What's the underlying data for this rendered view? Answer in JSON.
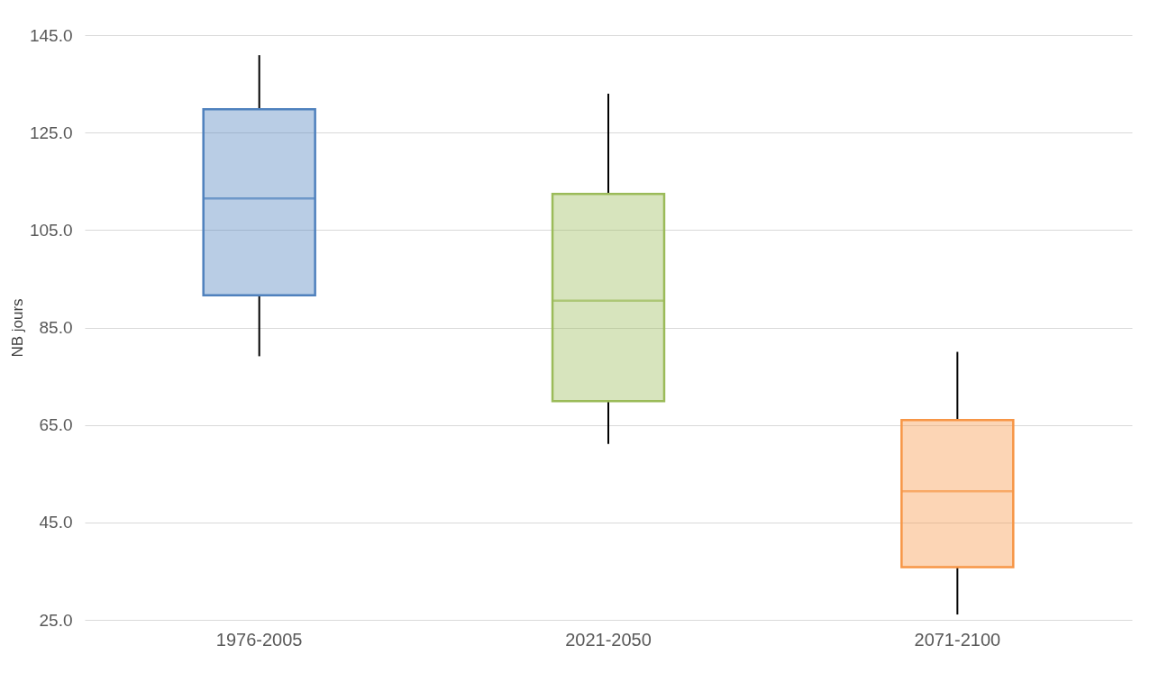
{
  "chart_data": {
    "type": "box",
    "ylabel": "NB jours",
    "categories": [
      "1976-2005",
      "2021-2050",
      "2071-2100"
    ],
    "boxes": [
      {
        "low": 79.1,
        "q1": 91.6,
        "median": 111.5,
        "q3": 129.8,
        "high": 140.9
      },
      {
        "low": 61.1,
        "q1": 69.9,
        "median": 90.5,
        "q3": 112.4,
        "high": 133
      },
      {
        "low": 26.1,
        "q1": 35.8,
        "median": 51.4,
        "q3": 66,
        "high": 80
      }
    ],
    "colors": [
      "#4f81bd",
      "#9bbb59",
      "#f79646"
    ],
    "ylim": [
      25,
      145
    ],
    "yticks": [
      {
        "value": 25,
        "label": "25.0"
      },
      {
        "value": 45,
        "label": "45.0"
      },
      {
        "value": 65,
        "label": "65.0"
      },
      {
        "value": 85,
        "label": "85.0"
      },
      {
        "value": 105,
        "label": "105.0"
      },
      {
        "value": 125,
        "label": "125.0"
      },
      {
        "value": 145,
        "label": "145.0"
      }
    ],
    "grid": "y"
  }
}
